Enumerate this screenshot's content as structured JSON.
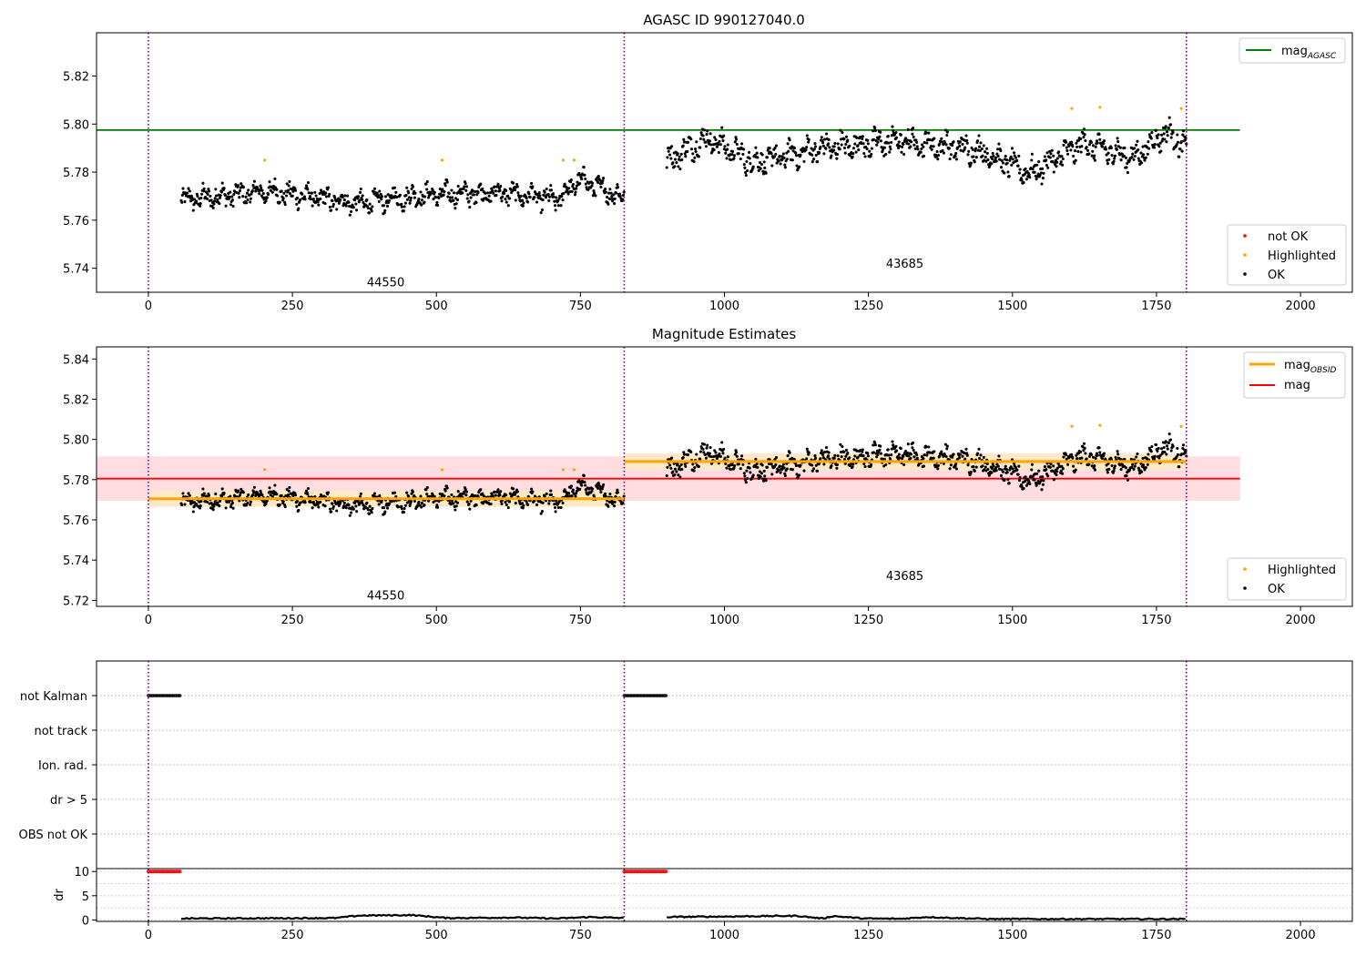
{
  "chart_data": [
    {
      "type": "scatter",
      "title": "AGASC ID 990127040.0",
      "xlabel": "",
      "ylabel": "",
      "xlim": [
        -90,
        2090
      ],
      "ylim": [
        5.73,
        5.838
      ],
      "xticks": [
        0,
        250,
        500,
        750,
        1000,
        1250,
        1500,
        1750,
        2000
      ],
      "yticks": [
        5.74,
        5.76,
        5.78,
        5.8,
        5.82
      ],
      "ytick_format": 2,
      "vlines": [
        0,
        826,
        1802
      ],
      "vline_color": "#800080",
      "segments": [
        {
          "obsid": "44550",
          "x_start": 57,
          "x_end": 826,
          "mean": 5.7705,
          "wave": [
            [
              0.0,
              5.7685
            ],
            [
              0.2,
              5.772
            ],
            [
              0.4,
              5.767
            ],
            [
              0.55,
              5.7705
            ],
            [
              0.72,
              5.7715
            ],
            [
              0.85,
              5.7685
            ],
            [
              0.9,
              5.777
            ],
            [
              1.0,
              5.769
            ]
          ],
          "amp": 0.0045
        },
        {
          "obsid": "43685",
          "x_start": 900,
          "x_end": 1802,
          "mean": 5.789,
          "wave": [
            [
              0.0,
              5.785
            ],
            [
              0.08,
              5.794
            ],
            [
              0.17,
              5.784
            ],
            [
              0.3,
              5.79
            ],
            [
              0.45,
              5.793
            ],
            [
              0.6,
              5.789
            ],
            [
              0.7,
              5.7795
            ],
            [
              0.8,
              5.792
            ],
            [
              0.9,
              5.786
            ],
            [
              0.96,
              5.797
            ],
            [
              1.0,
              5.79
            ]
          ],
          "amp": 0.0055
        }
      ],
      "obsid_labels": [
        {
          "text": "44550",
          "x": 412,
          "y": 5.7325
        },
        {
          "text": "43685",
          "x": 1313,
          "y": 5.7402
        }
      ],
      "hlines": [
        {
          "name": "mag_AGASC",
          "y": 5.7975,
          "color": "#008000",
          "x_start": -90,
          "x_end": 1895
        }
      ],
      "highlighted_points": [
        [
          202,
          5.785
        ],
        [
          510,
          5.785
        ],
        [
          720,
          5.785
        ],
        [
          739,
          5.785
        ],
        [
          1603,
          5.8065
        ],
        [
          1652,
          5.807
        ],
        [
          1793,
          5.8065
        ]
      ],
      "legend_top": {
        "position": "upper-right",
        "entries": [
          {
            "main": "mag",
            "sub": "AGASC",
            "kind": "line",
            "color": "#008000"
          }
        ]
      },
      "legend_bottom": {
        "position": "lower-right",
        "entries": [
          {
            "label": "not OK",
            "kind": "dot",
            "color": "#ff0000"
          },
          {
            "label": "Highlighted",
            "kind": "dot",
            "color": "#ffa500"
          },
          {
            "label": "OK",
            "kind": "dot",
            "color": "#000000"
          }
        ]
      }
    },
    {
      "type": "scatter",
      "title": "Magnitude Estimates",
      "xlabel": "",
      "ylabel": "",
      "xlim": [
        -90,
        2090
      ],
      "ylim": [
        5.717,
        5.846
      ],
      "xticks": [
        0,
        250,
        500,
        750,
        1000,
        1250,
        1500,
        1750,
        2000
      ],
      "yticks": [
        5.72,
        5.74,
        5.76,
        5.78,
        5.8,
        5.82,
        5.84
      ],
      "ytick_format": 2,
      "vlines": [
        0,
        826,
        1802
      ],
      "vline_color": "#800080",
      "segments": [
        {
          "obsid": "44550",
          "x_start": 57,
          "x_end": 826,
          "mean": 5.7705,
          "wave": [
            [
              0.0,
              5.7685
            ],
            [
              0.2,
              5.772
            ],
            [
              0.4,
              5.767
            ],
            [
              0.55,
              5.7705
            ],
            [
              0.72,
              5.7715
            ],
            [
              0.85,
              5.7685
            ],
            [
              0.9,
              5.777
            ],
            [
              1.0,
              5.769
            ]
          ],
          "amp": 0.0045
        },
        {
          "obsid": "43685",
          "x_start": 900,
          "x_end": 1802,
          "mean": 5.789,
          "wave": [
            [
              0.0,
              5.785
            ],
            [
              0.08,
              5.794
            ],
            [
              0.17,
              5.784
            ],
            [
              0.3,
              5.79
            ],
            [
              0.45,
              5.793
            ],
            [
              0.6,
              5.789
            ],
            [
              0.7,
              5.7795
            ],
            [
              0.8,
              5.792
            ],
            [
              0.9,
              5.786
            ],
            [
              0.96,
              5.797
            ],
            [
              1.0,
              5.79
            ]
          ],
          "amp": 0.0055
        }
      ],
      "obsid_labels": [
        {
          "text": "44550",
          "x": 412,
          "y": 5.7205
        },
        {
          "text": "43685",
          "x": 1313,
          "y": 5.7302
        }
      ],
      "bands": [
        {
          "x_start": -90,
          "x_end": 1895,
          "y_low": 5.7695,
          "y_high": 5.7915,
          "color": "#ffdde0"
        },
        {
          "x_start": 0,
          "x_end": 826,
          "y_low": 5.7665,
          "y_high": 5.7745,
          "color": "#ffe8c8"
        },
        {
          "x_start": 826,
          "x_end": 1802,
          "y_low": 5.785,
          "y_high": 5.793,
          "color": "#ffe8c8"
        }
      ],
      "step_lines": [
        {
          "name": "mag_OBSID",
          "color": "#ffa500",
          "segments": [
            [
              0,
              826,
              5.7705
            ],
            [
              826,
              1802,
              5.789
            ]
          ]
        }
      ],
      "hlines": [
        {
          "name": "mag",
          "y": 5.7805,
          "color": "#ff0000",
          "x_start": -90,
          "x_end": 1895
        }
      ],
      "highlighted_points": [
        [
          202,
          5.785
        ],
        [
          510,
          5.785
        ],
        [
          720,
          5.785
        ],
        [
          739,
          5.785
        ],
        [
          1603,
          5.8065
        ],
        [
          1652,
          5.807
        ],
        [
          1793,
          5.8065
        ]
      ],
      "legend_top": {
        "position": "upper-right",
        "entries": [
          {
            "main": "mag",
            "sub": "OBSID",
            "kind": "line",
            "color": "#ffa500"
          },
          {
            "main": "mag",
            "sub": "",
            "kind": "line",
            "color": "#ff0000"
          }
        ]
      },
      "legend_bottom": {
        "position": "lower-right",
        "entries": [
          {
            "label": "Highlighted",
            "kind": "dot",
            "color": "#ffa500"
          },
          {
            "label": "OK",
            "kind": "dot",
            "color": "#000000"
          }
        ]
      }
    },
    {
      "type": "scatter",
      "title": "",
      "xlabel": "",
      "ylabel": "",
      "xlim": [
        -90,
        2090
      ],
      "vlines": [
        0,
        826,
        1802
      ],
      "vline_color": "#800080",
      "flag_rows": [
        "not Kalman",
        "not track",
        "Ion. rad.",
        "dr > 5",
        "OBS not OK"
      ],
      "flag_hits": [
        {
          "row": "not Kalman",
          "x_start": 0,
          "x_end": 57
        },
        {
          "row": "not Kalman",
          "x_start": 826,
          "x_end": 900
        }
      ]
    },
    {
      "type": "line",
      "title": "",
      "xlabel": "",
      "ylabel": "dr",
      "xlim": [
        -90,
        2090
      ],
      "ylim": [
        -0.3,
        10.6
      ],
      "xticks": [
        0,
        250,
        500,
        750,
        1000,
        1250,
        1500,
        1750,
        2000
      ],
      "yticks": [
        0,
        5,
        10
      ],
      "ytick_format": 0,
      "vlines": [
        0,
        826,
        1802
      ],
      "vline_color": "#800080",
      "clipped_value": 10,
      "clipped_ranges": [
        [
          0,
          57
        ],
        [
          826,
          900
        ]
      ],
      "series": [
        {
          "name": "",
          "segments": [
            {
              "x_start": 57,
              "x_end": 826,
              "profile": [
                [
                  0,
                  0.3
                ],
                [
                  0.2,
                  0.35
                ],
                [
                  0.35,
                  0.4
                ],
                [
                  0.4,
                  0.9
                ],
                [
                  0.52,
                  1.0
                ],
                [
                  0.6,
                  0.4
                ],
                [
                  0.75,
                  0.5
                ],
                [
                  0.85,
                  0.3
                ],
                [
                  0.92,
                  0.6
                ],
                [
                  1.0,
                  0.4
                ]
              ]
            },
            {
              "x_start": 900,
              "x_end": 1802,
              "profile": [
                [
                  0,
                  0.6
                ],
                [
                  0.1,
                  0.7
                ],
                [
                  0.25,
                  0.85
                ],
                [
                  0.3,
                  0.3
                ],
                [
                  0.32,
                  0.8
                ],
                [
                  0.38,
                  0.3
                ],
                [
                  0.45,
                  0.25
                ],
                [
                  0.5,
                  0.6
                ],
                [
                  0.62,
                  0.2
                ],
                [
                  0.75,
                  0.2
                ],
                [
                  0.88,
                  0.2
                ],
                [
                  1.0,
                  0.2
                ]
              ]
            }
          ]
        }
      ]
    }
  ]
}
